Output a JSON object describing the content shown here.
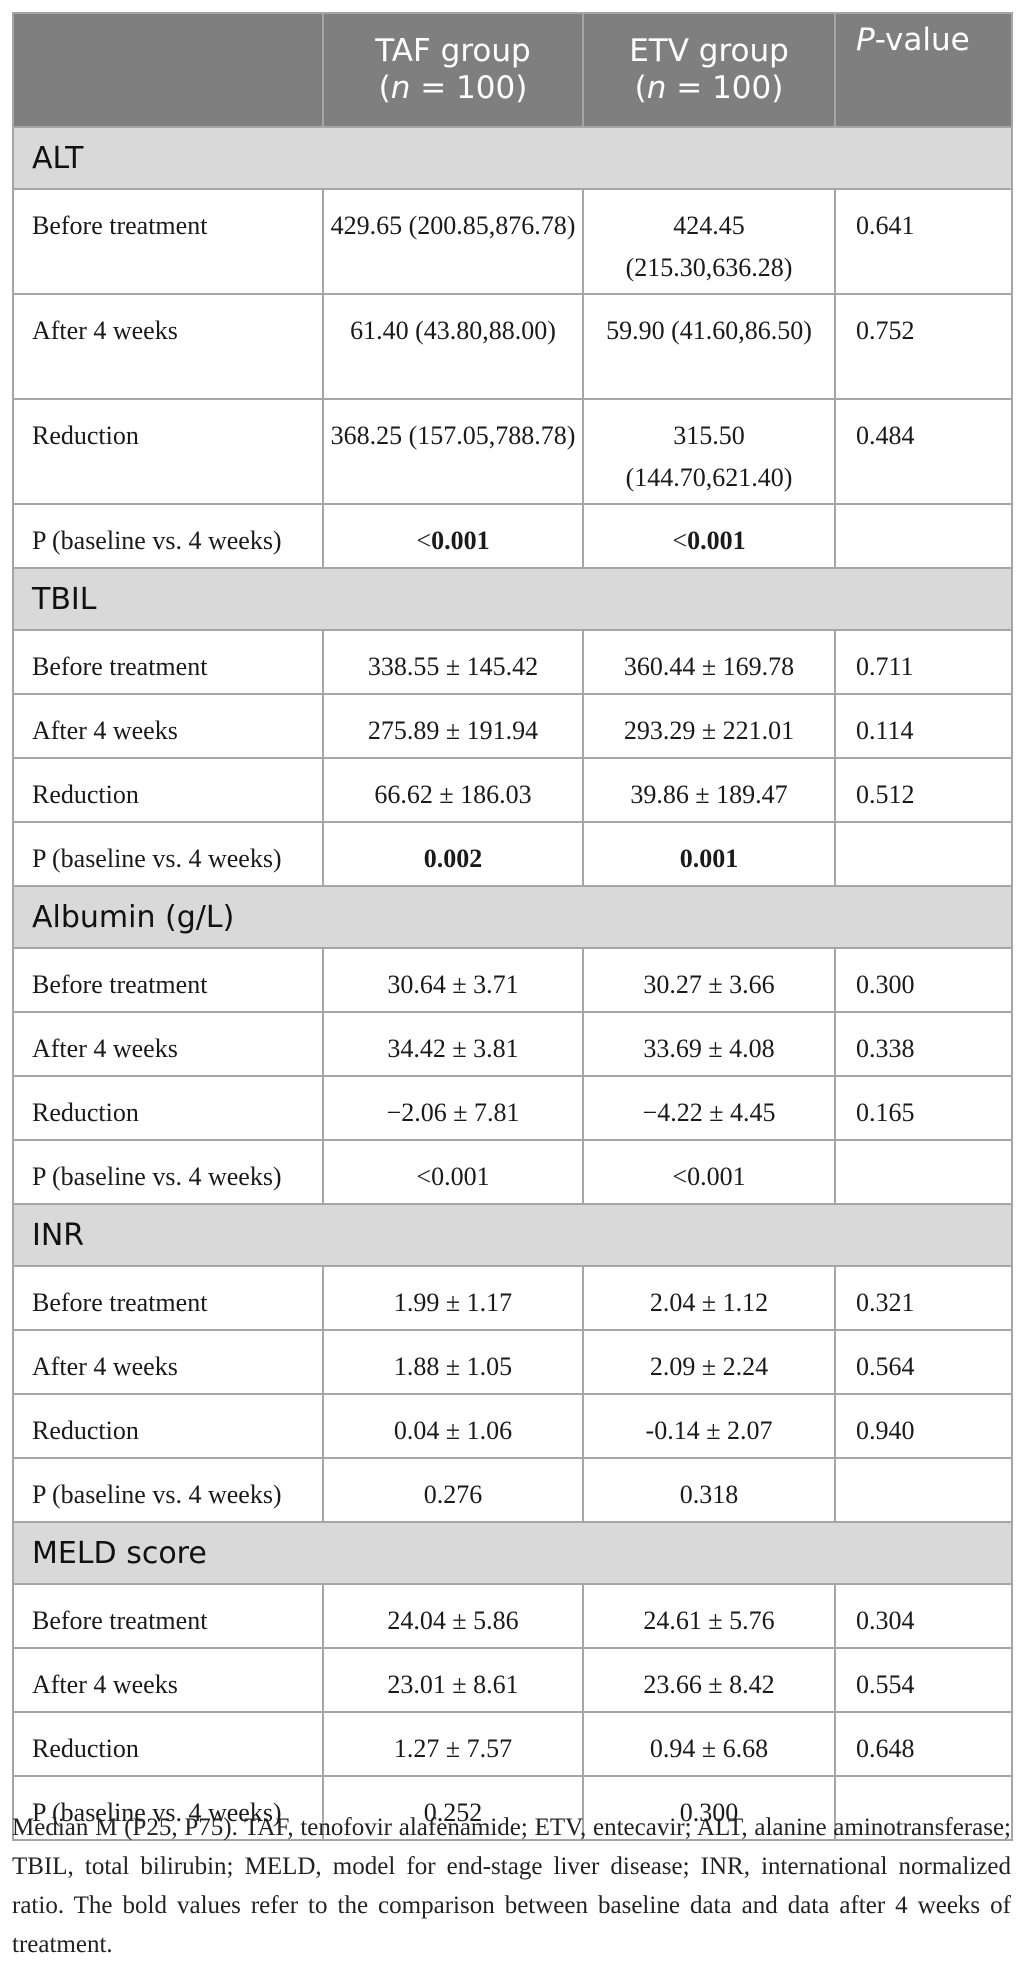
{
  "header": {
    "col0": "",
    "col1_line1": "TAF group",
    "col1_n": "n",
    "col1_rest": " = 100)",
    "col2_line1": "ETV group",
    "col2_n": "n",
    "col2_rest": " = 100)",
    "col3_italic": "P",
    "col3_rest": "-value"
  },
  "sections": [
    {
      "title": "ALT",
      "rows": [
        {
          "label": "Before treatment",
          "taf": "429.65 (200.85,876.78)",
          "etv": "424.45 (215.30,636.28)",
          "p": "0.641"
        },
        {
          "label": "After 4 weeks",
          "taf": "61.40 (43.80,88.00)",
          "etv": "59.90 (41.60,86.50)",
          "p": "0.752"
        },
        {
          "label": "Reduction",
          "taf": "368.25 (157.05,788.78)",
          "etv": "315.50 (144.70,621.40)",
          "p": "0.484"
        },
        {
          "label": "P (baseline vs. 4 weeks)",
          "taf_prefix": "<",
          "taf_bold": "0.001",
          "etv_prefix": "<",
          "etv_bold": "0.001",
          "p": ""
        }
      ]
    },
    {
      "title": "TBIL",
      "rows": [
        {
          "label": "Before treatment",
          "taf": "338.55 ± 145.42",
          "etv": "360.44 ± 169.78",
          "p": "0.711"
        },
        {
          "label": "After 4 weeks",
          "taf": "275.89 ± 191.94",
          "etv": "293.29 ± 221.01",
          "p": "0.114"
        },
        {
          "label": "Reduction",
          "taf": "66.62 ± 186.03",
          "etv": "39.86 ± 189.47",
          "p": "0.512"
        },
        {
          "label": "P (baseline vs. 4 weeks)",
          "taf_bold": "0.002",
          "etv_bold": "0.001",
          "p": ""
        }
      ]
    },
    {
      "title": "Albumin (g/L)",
      "rows": [
        {
          "label": "Before treatment",
          "taf": "30.64 ± 3.71",
          "etv": "30.27 ± 3.66",
          "p": "0.300"
        },
        {
          "label": "After 4 weeks",
          "taf": "34.42 ± 3.81",
          "etv": "33.69 ± 4.08",
          "p": "0.338"
        },
        {
          "label": "Reduction",
          "taf": "−2.06 ± 7.81",
          "etv": "−4.22 ± 4.45",
          "p": "0.165"
        },
        {
          "label": "P (baseline vs. 4 weeks)",
          "taf": "<0.001",
          "etv": "<0.001",
          "p": ""
        }
      ]
    },
    {
      "title": "INR",
      "rows": [
        {
          "label": "Before treatment",
          "taf": "1.99 ± 1.17",
          "etv": "2.04 ± 1.12",
          "p": "0.321"
        },
        {
          "label": "After 4 weeks",
          "taf": "1.88 ± 1.05",
          "etv": "2.09 ± 2.24",
          "p": "0.564"
        },
        {
          "label": "Reduction",
          "taf": "0.04 ± 1.06",
          "etv": "-0.14 ± 2.07",
          "p": "0.940"
        },
        {
          "label": "P (baseline vs. 4 weeks)",
          "taf": "0.276",
          "etv": "0.318",
          "p": ""
        }
      ]
    },
    {
      "title": "MELD score",
      "rows": [
        {
          "label": "Before treatment",
          "taf": "24.04 ± 5.86",
          "etv": "24.61 ± 5.76",
          "p": "0.304"
        },
        {
          "label": "After 4 weeks",
          "taf": "23.01 ± 8.61",
          "etv": "23.66 ± 8.42",
          "p": "0.554"
        },
        {
          "label": "Reduction",
          "taf": "1.27 ± 7.57",
          "etv": "0.94 ± 6.68",
          "p": "0.648"
        },
        {
          "label": "P (baseline vs. 4 weeks)",
          "taf": "0.252",
          "etv": "0.300",
          "p": ""
        }
      ]
    }
  ],
  "footnote": "Median M (P25, P75). TAF, tenofovir alafenamide; ETV, entecavir; ALT, alanine aminotransferase; TBIL, total bilirubin; MELD, model for end-stage liver disease; INR, international normalized ratio. The bold values refer to the comparison between baseline data and data after 4 weeks of treatment.",
  "colors": {
    "header_bg": "#7f7f7f",
    "section_bg": "#d9d9d9",
    "border": "#a6a6a6"
  }
}
